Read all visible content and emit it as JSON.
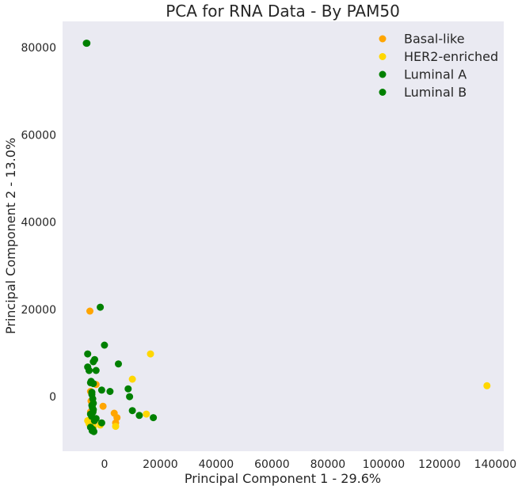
{
  "chart_data": {
    "type": "scatter",
    "title": "PCA for RNA Data - By PAM50",
    "xlabel": "Principal Component 1 - 29.6%",
    "ylabel": "Principal Component 2 - 13.0%",
    "xlim": [
      -15000,
      143000
    ],
    "ylim": [
      -12500,
      86000
    ],
    "xticks": [
      0,
      20000,
      40000,
      60000,
      80000,
      100000,
      120000,
      140000
    ],
    "yticks": [
      0,
      20000,
      40000,
      60000,
      80000
    ],
    "grid": false,
    "legend": "top-right",
    "background": "#eaeaf2",
    "series": [
      {
        "name": "Basal-like",
        "color": "#ffa500",
        "x": [
          -5200,
          -5000,
          -3000,
          -3500,
          -500,
          4000,
          4500,
          3500,
          -5000,
          -4800,
          -4200
        ],
        "y": [
          19600,
          -3500,
          2800,
          -5500,
          -2200,
          -6000,
          -4800,
          -3800,
          1200,
          -1000,
          -6500
        ]
      },
      {
        "name": "HER2-enriched",
        "color": "#ffd700",
        "x": [
          16500,
          10000,
          15000,
          137000,
          -6000,
          -5500,
          -1500,
          4000,
          -4000
        ],
        "y": [
          9800,
          4000,
          -4000,
          2500,
          -5500,
          -6200,
          -6500,
          -6800,
          -7000
        ]
      },
      {
        "name": "Luminal A",
        "color": "#008000",
        "x": [
          -6500,
          -1500,
          0,
          -6000,
          -5500,
          -4000,
          -3500,
          5000,
          -5000,
          -4000,
          -3000,
          -4500,
          -1000,
          2000,
          8500,
          9000,
          10000,
          12500,
          17500,
          -4500,
          -4000,
          -5000,
          -3000,
          -1000,
          -4200,
          -3800
        ],
        "y": [
          81000,
          20500,
          11800,
          9800,
          6000,
          8000,
          8500,
          7500,
          3200,
          3000,
          6000,
          1000,
          1500,
          1200,
          1800,
          0,
          -3200,
          -4300,
          -4800,
          -2000,
          -3000,
          -4000,
          -5000,
          -6000,
          -7500,
          -8000
        ]
      },
      {
        "name": "Luminal B",
        "color": "#008000",
        "x": [
          -6300,
          -6000,
          -5500,
          -4800,
          -4500,
          -4200,
          -4000,
          -4300,
          -4100,
          -4600,
          -3600,
          -5000,
          -4400
        ],
        "y": [
          81000,
          6800,
          6000,
          3500,
          500,
          -500,
          -1500,
          -2500,
          -3500,
          -4500,
          -5500,
          -7000,
          -7800
        ]
      }
    ]
  }
}
